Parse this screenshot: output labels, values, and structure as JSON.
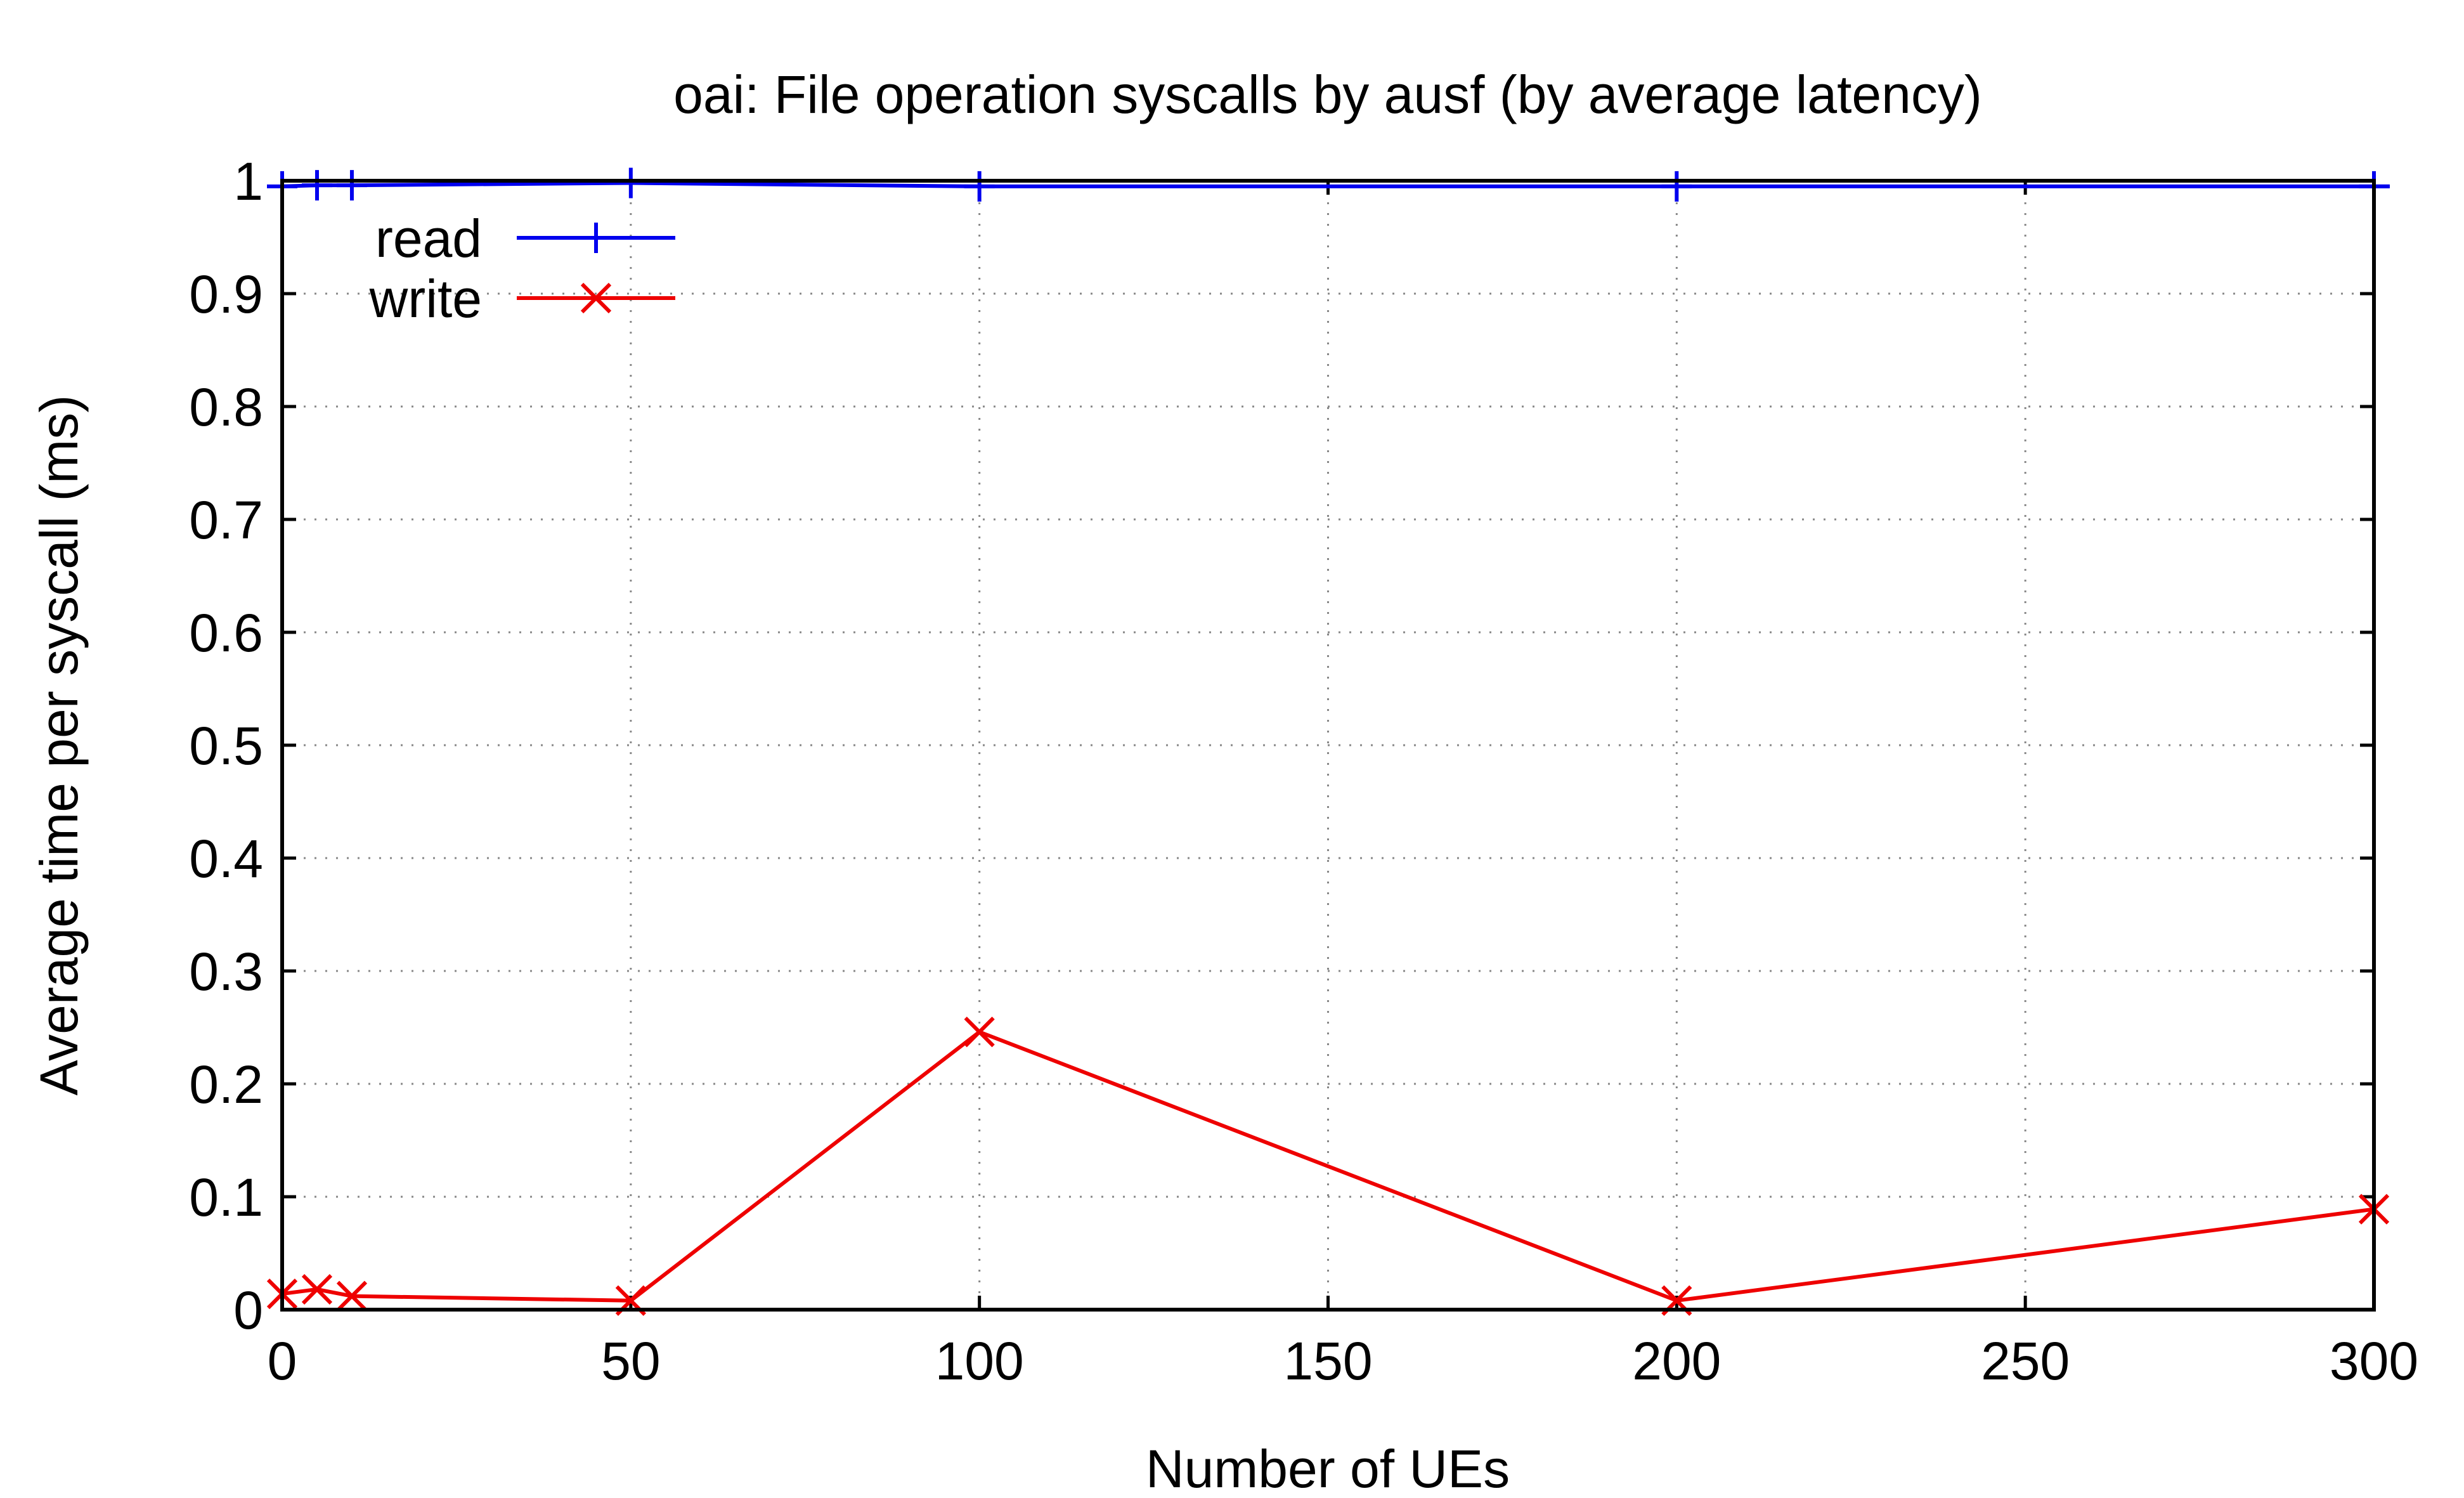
{
  "chart_data": {
    "type": "line",
    "title": "oai: File operation syscalls by ausf (by average latency)",
    "xlabel": "Number of UEs",
    "ylabel": "Average time per syscall (ms)",
    "xlim": [
      0,
      300
    ],
    "ylim": [
      0,
      1
    ],
    "xticks": [
      0,
      50,
      100,
      150,
      200,
      250,
      300
    ],
    "yticks": [
      0,
      0.1,
      0.2,
      0.3,
      0.4,
      0.5,
      0.6,
      0.7,
      0.8,
      0.9,
      1
    ],
    "xtick_labels": [
      "0",
      "50",
      "100",
      "150",
      "200",
      "250",
      "300"
    ],
    "ytick_labels": [
      "0",
      "0.1",
      "0.2",
      "0.3",
      "0.4",
      "0.5",
      "0.6",
      "0.7",
      "0.8",
      "0.9",
      "1"
    ],
    "grid": true,
    "legend_position": "top-left",
    "series": [
      {
        "name": "read",
        "color": "#0000ee",
        "marker": "plus",
        "x": [
          0,
          5,
          10,
          50,
          100,
          200,
          300
        ],
        "y": [
          0.995,
          0.996,
          0.996,
          0.998,
          0.995,
          0.995,
          0.995
        ]
      },
      {
        "name": "write",
        "color": "#ee0000",
        "marker": "cross",
        "x": [
          0,
          5,
          10,
          50,
          100,
          200,
          300
        ],
        "y": [
          0.014,
          0.018,
          0.012,
          0.008,
          0.246,
          0.008,
          0.089
        ]
      }
    ]
  }
}
